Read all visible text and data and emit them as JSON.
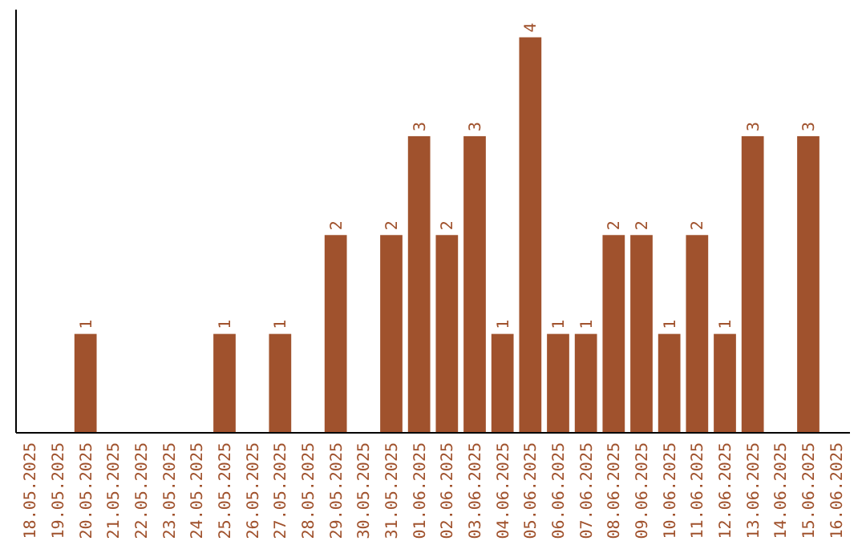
{
  "chart_data": {
    "type": "bar",
    "categories": [
      "18.05.2025",
      "19.05.2025",
      "20.05.2025",
      "21.05.2025",
      "22.05.2025",
      "23.05.2025",
      "24.05.2025",
      "25.05.2025",
      "26.05.2025",
      "27.05.2025",
      "28.05.2025",
      "29.05.2025",
      "30.05.2025",
      "31.05.2025",
      "01.06.2025",
      "02.06.2025",
      "03.06.2025",
      "04.06.2025",
      "05.06.2025",
      "06.06.2025",
      "07.06.2025",
      "08.06.2025",
      "09.06.2025",
      "10.06.2025",
      "11.06.2025",
      "12.06.2025",
      "13.06.2025",
      "14.06.2025",
      "15.06.2025",
      "16.06.2025"
    ],
    "values": [
      null,
      null,
      1,
      null,
      null,
      null,
      null,
      1,
      null,
      1,
      null,
      2,
      null,
      2,
      3,
      2,
      3,
      1,
      4,
      1,
      1,
      2,
      2,
      1,
      2,
      1,
      3,
      null,
      3,
      null
    ],
    "color": "#a0522d",
    "data_labels": true,
    "tick_labels": "x"
  }
}
